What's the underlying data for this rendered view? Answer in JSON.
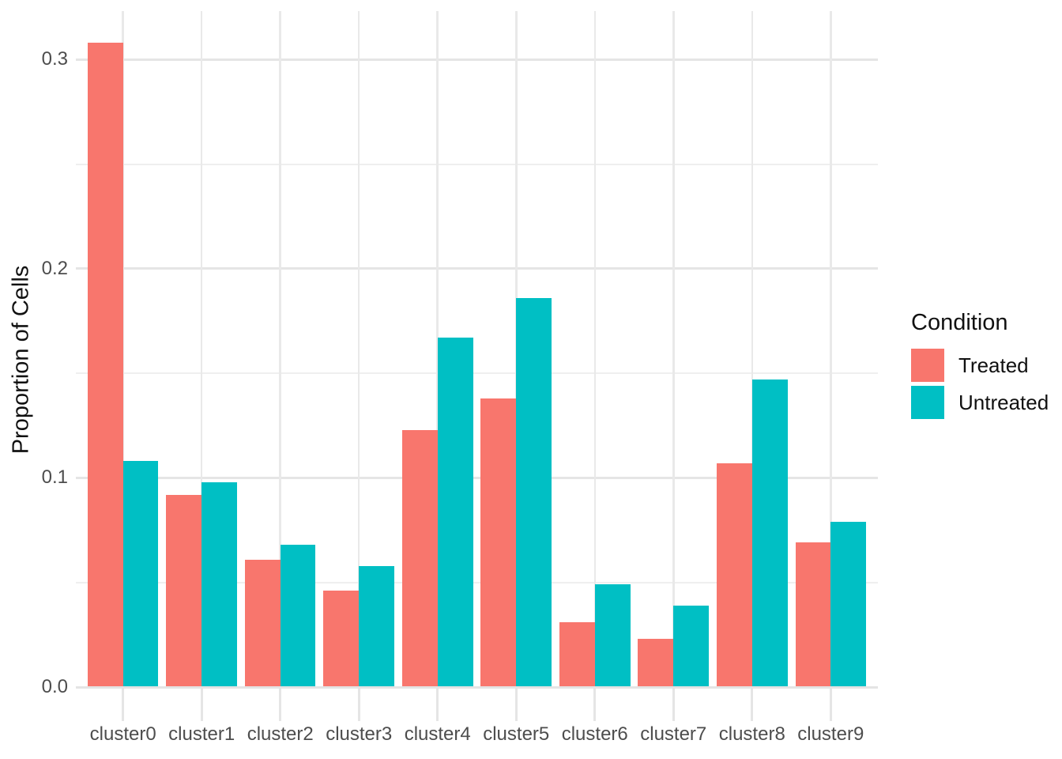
{
  "chart_data": {
    "type": "bar",
    "title": "",
    "xlabel": "",
    "ylabel": "Proportion of Cells",
    "categories": [
      "cluster0",
      "cluster1",
      "cluster2",
      "cluster3",
      "cluster4",
      "cluster5",
      "cluster6",
      "cluster7",
      "cluster8",
      "cluster9"
    ],
    "series": [
      {
        "name": "Treated",
        "color": "#F8766D",
        "values": [
          0.308,
          0.092,
          0.061,
          0.046,
          0.123,
          0.138,
          0.031,
          0.023,
          0.107,
          0.069
        ]
      },
      {
        "name": "Untreated",
        "color": "#00BFC4",
        "values": [
          0.108,
          0.098,
          0.068,
          0.058,
          0.167,
          0.186,
          0.049,
          0.039,
          0.147,
          0.079
        ]
      }
    ],
    "ylim": [
      0,
      0.3232
    ],
    "yticks": [
      0.0,
      0.1,
      0.2,
      0.3
    ],
    "ytick_labels": [
      "0.0",
      "0.1",
      "0.2",
      "0.3"
    ],
    "minor_gridlines": [
      0.05,
      0.15,
      0.25
    ],
    "grid": "major+minor, plus vertical gridline at each category",
    "legend": {
      "title": "Condition",
      "position": "right",
      "entries": [
        "Treated",
        "Untreated"
      ]
    },
    "colors": {
      "treated": "#F8766D",
      "untreated": "#00BFC4",
      "gridline": "#e5e5e5",
      "tick_text": "#4d4d4d",
      "title_text": "#111111",
      "background": "#ffffff"
    }
  }
}
